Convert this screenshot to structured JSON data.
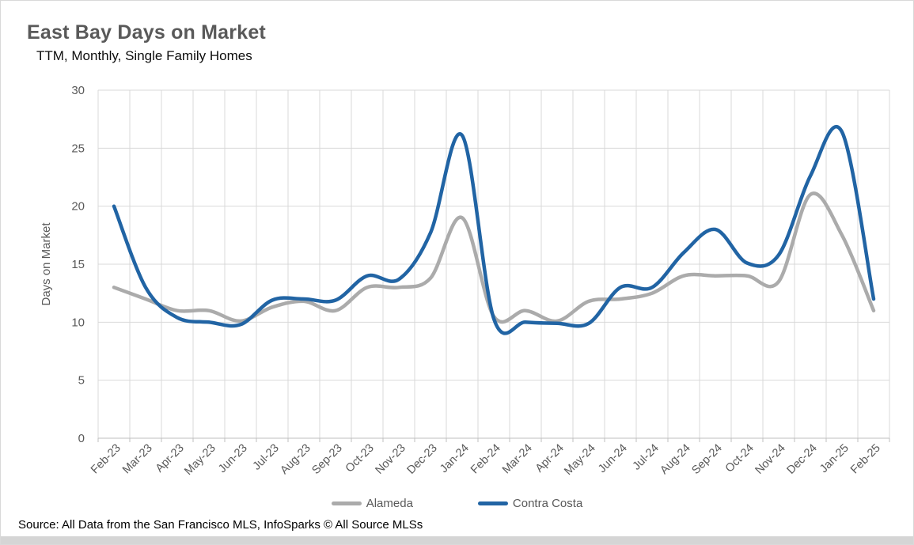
{
  "page": {
    "title": "East Bay Days on Market",
    "subtitle": "TTM, Monthly, Single Family Homes",
    "footer": "Source: All Data from the San Francisco MLS, InfoSparks © All Source MLSs"
  },
  "colors": {
    "gridline": "#d9d9d9",
    "axis_line": "#bfbfbf",
    "axis_text": "#595959",
    "title_text": "#595959"
  },
  "chart_data": {
    "type": "line",
    "title": "East Bay Days on Market",
    "subtitle": "TTM, Monthly, Single Family Homes",
    "xlabel": "",
    "ylabel": "Days on Market",
    "ylim": [
      0,
      30
    ],
    "yticks": [
      0,
      5,
      10,
      15,
      20,
      25,
      30
    ],
    "grid": true,
    "smoothed": true,
    "legend_position": "bottom",
    "categories": [
      "Feb-23",
      "Mar-23",
      "Apr-23",
      "May-23",
      "Jun-23",
      "Jul-23",
      "Aug-23",
      "Sep-23",
      "Oct-23",
      "Nov-23",
      "Dec-23",
      "Jan-24",
      "Feb-24",
      "Mar-24",
      "Apr-24",
      "May-24",
      "Jun-24",
      "Jul-24",
      "Aug-24",
      "Sep-24",
      "Oct-24",
      "Nov-24",
      "Dec-24",
      "Jan-25",
      "Feb-25"
    ],
    "series": [
      {
        "name": "Alameda",
        "color": "#ababab",
        "values": [
          13,
          12,
          11,
          11,
          10.1,
          11.3,
          11.8,
          11,
          13,
          13,
          13.8,
          19,
          10.5,
          11,
          10.1,
          11.8,
          12,
          12.5,
          14,
          14,
          14,
          13.5,
          21,
          17.5,
          11
        ]
      },
      {
        "name": "Contra Costa",
        "color": "#2164a4",
        "values": [
          20,
          13,
          10.4,
          10,
          9.8,
          11.9,
          12,
          11.9,
          14,
          13.7,
          17.7,
          26.1,
          10.3,
          10,
          9.9,
          9.9,
          13,
          13,
          16,
          18,
          15.1,
          15.8,
          22.6,
          26.4,
          12
        ]
      }
    ]
  }
}
